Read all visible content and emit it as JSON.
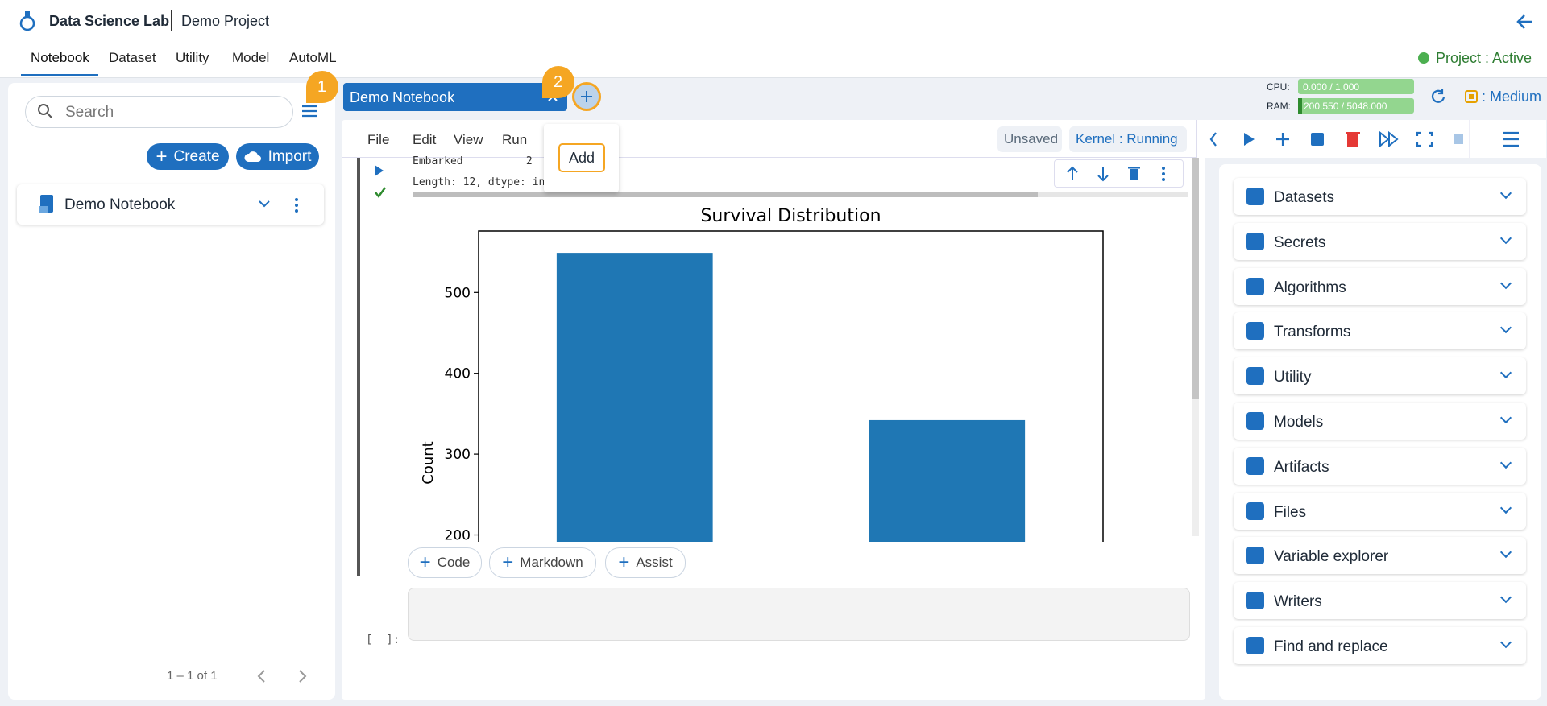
{
  "header": {
    "app": "Data Science Lab",
    "project": "Demo Project"
  },
  "nav": {
    "tabs": [
      "Notebook",
      "Dataset",
      "Utility",
      "Model",
      "AutoML"
    ],
    "status": "Project : Active"
  },
  "sidebar": {
    "search_placeholder": "Search",
    "create": "Create",
    "import": "Import",
    "items": [
      "Demo Notebook"
    ],
    "pagination": "1 – 1 of 1"
  },
  "tabs": {
    "open": [
      "Demo Notebook"
    ],
    "badges": [
      "1",
      "2"
    ],
    "tooltip": "Add"
  },
  "resources": {
    "cpu_label": "CPU:",
    "cpu_value": "0.000 / 1.000",
    "ram_label": "RAM:",
    "ram_value": "200.550 / 5048.000",
    "size": ": Medium"
  },
  "toolbar": {
    "menu": [
      "File",
      "Edit",
      "View",
      "Run"
    ],
    "save_state": "Unsaved",
    "kernel": "Kernel : Running"
  },
  "cell": {
    "output_lines": [
      "Embarked          2",
      "Length: 12, dtype: in"
    ],
    "add_buttons": [
      "Code",
      "Markdown",
      "Assist"
    ],
    "prompt": "[  ]:"
  },
  "chart_data": {
    "type": "bar",
    "title": "Survival Distribution",
    "y_label": "Count",
    "categories": [
      null,
      null
    ],
    "values": [
      549,
      342
    ],
    "color": "#1f77b4",
    "ylim": [
      0,
      576
    ],
    "yticks": [
      200,
      300,
      400,
      500
    ]
  },
  "panels": [
    "Datasets",
    "Secrets",
    "Algorithms",
    "Transforms",
    "Utility",
    "Models",
    "Artifacts",
    "Files",
    "Variable explorer",
    "Writers",
    "Find and replace"
  ]
}
